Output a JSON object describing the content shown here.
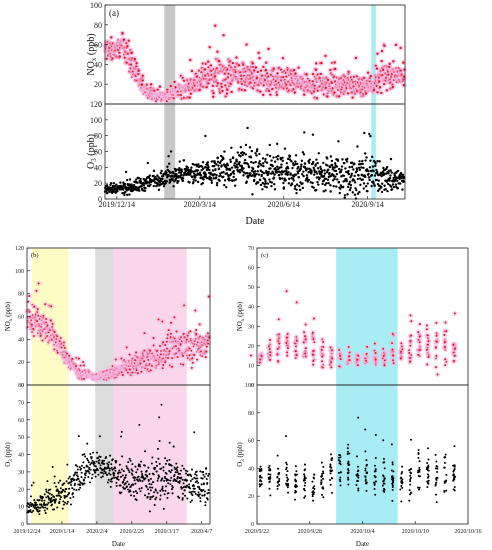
{
  "chart_data": [
    {
      "type": "scatter",
      "label": "(a)",
      "xlabel": "Date",
      "x_ticks": [
        "2019/12/14",
        "2020/3/14",
        "2020/6/14",
        "2020/9/14"
      ],
      "x_range": [
        "2019/12/01",
        "2020/10/25"
      ],
      "highlights": [
        {
          "from": "2020/2/04",
          "to": "2020/2/16",
          "color": "#c8c8c8"
        },
        {
          "from": "2020/9/18",
          "to": "2020/9/23",
          "color": "#a8ecf4"
        }
      ],
      "panels": [
        {
          "ylabel": "NO",
          "ylabel_sub": "x",
          "ylabel_unit": " (ppb)",
          "ylim": [
            0,
            100
          ],
          "yticks": [
            0,
            20,
            40,
            60,
            80,
            100
          ],
          "color": "#e8141e",
          "halo": "#f4b8e4",
          "series_profile": {
            "dates": [
              "2019/12/14",
              "2019/12/20",
              "2019/12/28",
              "2020/1/10",
              "2020/1/25",
              "2020/2/10",
              "2020/3/01",
              "2020/3/14",
              "2020/4/01",
              "2020/5/01",
              "2020/6/01",
              "2020/7/01",
              "2020/8/01",
              "2020/9/01",
              "2020/9/20",
              "2020/10/01",
              "2020/10/15"
            ],
            "mean": [
              55,
              62,
              45,
              18,
              8,
              8,
              18,
              24,
              28,
              27,
              24,
              22,
              20,
              18,
              20,
              28,
              30
            ],
            "max": [
              85,
              90,
              80,
              40,
              20,
              18,
              48,
              58,
              82,
              75,
              60,
              54,
              52,
              48,
              50,
              62,
              62
            ]
          }
        },
        {
          "ylabel": "O",
          "ylabel_sub": "3",
          "ylabel_unit": " (ppb)",
          "ylim": [
            0,
            120
          ],
          "yticks": [
            0,
            20,
            40,
            60,
            80,
            100,
            120
          ],
          "color": "#000000",
          "series_profile": {
            "dates": [
              "2019/12/14",
              "2020/1/10",
              "2020/2/10",
              "2020/3/14",
              "2020/4/15",
              "2020/5/15",
              "2020/6/15",
              "2020/7/15",
              "2020/8/15",
              "2020/9/14",
              "2020/10/15"
            ],
            "mean": [
              12,
              18,
              30,
              32,
              38,
              40,
              35,
              33,
              30,
              30,
              25
            ],
            "max": [
              30,
              45,
              60,
              80,
              95,
              110,
              100,
              85,
              100,
              95,
              70
            ]
          }
        }
      ]
    },
    {
      "type": "scatter",
      "label": "(b)",
      "xlabel": "Date",
      "x_ticks": [
        "2019/12/24",
        "2020/1/14",
        "2020/2/4",
        "2020/2/25",
        "2020/3/17",
        "2020/4/7"
      ],
      "x_range": [
        "2019/12/24",
        "2020/4/12"
      ],
      "highlights": [
        {
          "from": "2019/12/27",
          "to": "2020/1/18",
          "color": "#fcfcc4"
        },
        {
          "from": "2020/2/03",
          "to": "2020/2/14",
          "color": "#dcdcdc"
        },
        {
          "from": "2020/2/14",
          "to": "2020/3/29",
          "color": "#fad6ea"
        }
      ],
      "panels": [
        {
          "ylabel": "NO",
          "ylabel_sub": "x",
          "ylabel_unit": " (ppb)",
          "ylim": [
            0,
            120
          ],
          "yticks": [
            0,
            20,
            40,
            60,
            80,
            100,
            120
          ],
          "color": "#e8141e",
          "halo": "#f4b8e4",
          "series_profile": {
            "dates": [
              "2019/12/27",
              "2020/1/03",
              "2020/1/10",
              "2020/1/18",
              "2020/1/25",
              "2020/2/03",
              "2020/2/14",
              "2020/2/25",
              "2020/3/07",
              "2020/3/17",
              "2020/3/29"
            ],
            "mean": [
              58,
              52,
              40,
              22,
              10,
              7,
              10,
              18,
              22,
              30,
              35
            ],
            "max": [
              95,
              88,
              70,
              42,
              22,
              14,
              22,
              40,
              48,
              68,
              78
            ]
          }
        },
        {
          "ylabel": "O",
          "ylabel_sub": "3",
          "ylabel_unit": " (ppb)",
          "ylim": [
            0,
            80
          ],
          "yticks": [
            0,
            10,
            20,
            30,
            40,
            50,
            60,
            70,
            80
          ],
          "color": "#000000",
          "series_profile": {
            "dates": [
              "2019/12/27",
              "2020/1/03",
              "2020/1/10",
              "2020/1/18",
              "2020/1/25",
              "2020/2/03",
              "2020/2/14",
              "2020/2/25",
              "2020/3/07",
              "2020/3/17",
              "2020/3/29"
            ],
            "mean": [
              10,
              12,
              16,
              20,
              28,
              35,
              30,
              25,
              26,
              28,
              22
            ],
            "max": [
              25,
              30,
              38,
              48,
              55,
              60,
              52,
              58,
              65,
              72,
              55
            ]
          }
        }
      ]
    },
    {
      "type": "scatter",
      "label": "(c)",
      "xlabel": "Date",
      "x_ticks": [
        "2020/9/22",
        "2020/9/28",
        "2020/10/4",
        "2020/10/10",
        "2020/10/16"
      ],
      "x_range": [
        "2020/9/22",
        "2020/10/16"
      ],
      "highlights": [
        {
          "from": "2020/10/01",
          "to": "2020/10/08",
          "color": "#a8ecf4"
        }
      ],
      "panels": [
        {
          "ylabel": "NO",
          "ylabel_sub": "x",
          "ylabel_unit": " (ppb)",
          "ylim": [
            0,
            70
          ],
          "yticks": [
            0,
            10,
            20,
            30,
            40,
            50,
            60,
            70
          ],
          "color": "#e8141e",
          "halo": "#f4b8e4",
          "series_profile": {
            "dates": [
              "2020/9/23",
              "2020/9/25",
              "2020/9/27",
              "2020/9/29",
              "2020/10/01",
              "2020/10/04",
              "2020/10/07",
              "2020/10/09",
              "2020/10/11",
              "2020/10/13",
              "2020/10/15"
            ],
            "mean": [
              14,
              22,
              20,
              18,
              14,
              13,
              15,
              17,
              22,
              20,
              18
            ],
            "max": [
              20,
              52,
              38,
              42,
              26,
              22,
              25,
              32,
              48,
              65,
              35
            ]
          }
        },
        {
          "ylabel": "O",
          "ylabel_sub": "3",
          "ylabel_unit": " (ppb)",
          "ylim": [
            0,
            100
          ],
          "yticks": [
            0,
            20,
            40,
            60,
            80,
            100
          ],
          "color": "#000000",
          "series_profile": {
            "dates": [
              "2020/9/23",
              "2020/9/25",
              "2020/9/27",
              "2020/9/29",
              "2020/10/01",
              "2020/10/04",
              "2020/10/07",
              "2020/10/09",
              "2020/10/11",
              "2020/10/13",
              "2020/10/15"
            ],
            "mean": [
              35,
              32,
              30,
              28,
              42,
              38,
              32,
              30,
              40,
              35,
              32
            ],
            "max": [
              60,
              65,
              60,
              62,
              85,
              80,
              70,
              62,
              92,
              75,
              60
            ]
          }
        }
      ]
    }
  ]
}
